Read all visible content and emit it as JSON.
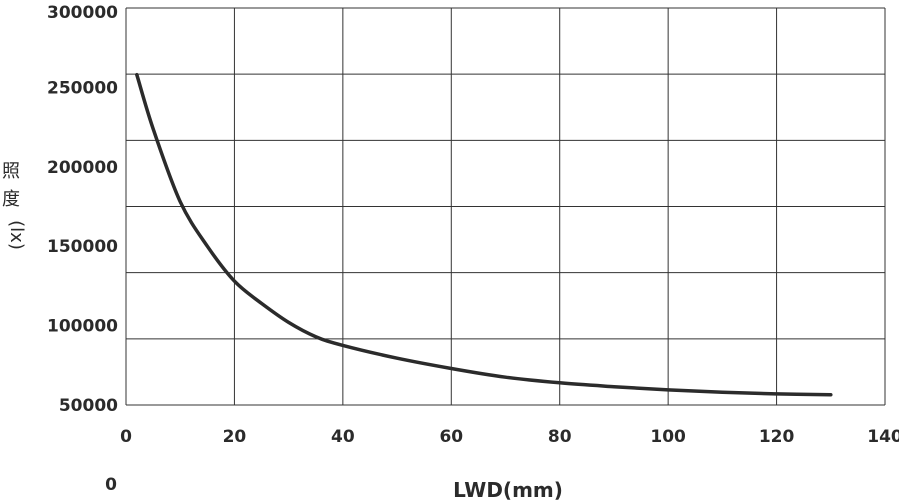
{
  "chart_data": {
    "type": "line",
    "xlabel": "LWD(mm)",
    "ylabel_chars": [
      "照",
      "度",
      "(lx)"
    ],
    "xlim": [
      0,
      140
    ],
    "x_ticks": [
      0,
      20,
      40,
      60,
      80,
      100,
      120,
      140
    ],
    "x_tick_labels": [
      "0",
      "20",
      "40",
      "60",
      "80",
      "100",
      "120",
      "140"
    ],
    "y_ticks": [
      50000,
      100000,
      150000,
      200000,
      250000,
      300000
    ],
    "y_tick_labels": [
      "50000",
      "100000",
      "150000",
      "200000",
      "250000",
      "300000"
    ],
    "stray_label": "0",
    "grid": true,
    "series": [
      {
        "x": [
          2,
          5,
          10,
          15,
          20,
          25,
          30,
          35,
          40,
          50,
          60,
          70,
          80,
          90,
          100,
          110,
          120,
          130
        ],
        "y": [
          258000,
          224000,
          178000,
          150000,
          128000,
          114000,
          102000,
          93000,
          87500,
          79500,
          73000,
          67500,
          64000,
          61500,
          59500,
          58000,
          57000,
          56500
        ]
      }
    ]
  }
}
